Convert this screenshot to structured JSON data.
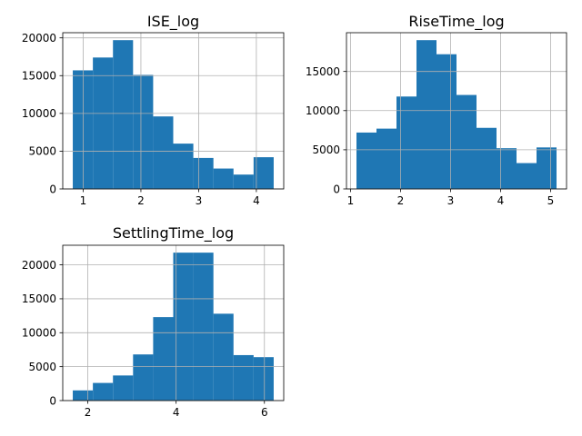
{
  "colors": {
    "bar": "#1f77b4",
    "grid": "#b0b0b0",
    "axis": "#000000",
    "background": "#ffffff"
  },
  "chart_data": [
    {
      "type": "bar",
      "title": "ISE_log",
      "grid": true,
      "bin_edges": [
        0.82,
        1.168,
        1.516,
        1.864,
        2.212,
        2.56,
        2.908,
        3.256,
        3.604,
        3.952,
        4.3
      ],
      "values": [
        15700,
        17400,
        19700,
        15100,
        9600,
        6000,
        4100,
        2700,
        1900,
        4200
      ],
      "xlim": [
        0.646,
        4.474
      ],
      "ylim": [
        0,
        20685
      ],
      "xticks": [
        1,
        2,
        3,
        4
      ],
      "xtick_labels": [
        "1",
        "2",
        "3",
        "4"
      ],
      "yticks": [
        0,
        5000,
        10000,
        15000,
        20000
      ],
      "ytick_labels": [
        "0",
        "5000",
        "10000",
        "15000",
        "20000"
      ]
    },
    {
      "type": "bar",
      "title": "RiseTime_log",
      "grid": true,
      "bin_edges": [
        1.12,
        1.52,
        1.92,
        2.32,
        2.72,
        3.12,
        3.52,
        3.92,
        4.32,
        4.72,
        5.12
      ],
      "values": [
        7200,
        7700,
        11800,
        19000,
        17200,
        12000,
        7800,
        5200,
        3300,
        5300
      ],
      "xlim": [
        0.92,
        5.32
      ],
      "ylim": [
        0,
        19950
      ],
      "xticks": [
        1,
        2,
        3,
        4,
        5
      ],
      "xtick_labels": [
        "1",
        "2",
        "3",
        "4",
        "5"
      ],
      "yticks": [
        0,
        5000,
        10000,
        15000
      ],
      "ytick_labels": [
        "0",
        "5000",
        "10000",
        "15000"
      ]
    },
    {
      "type": "bar",
      "title": "SettlingTime_log",
      "grid": true,
      "bin_edges": [
        1.66,
        2.115,
        2.57,
        3.025,
        3.48,
        3.935,
        4.39,
        4.845,
        5.3,
        5.755,
        6.21
      ],
      "values": [
        1500,
        2600,
        3700,
        6800,
        12300,
        21800,
        21800,
        12800,
        6700,
        6400
      ],
      "xlim": [
        1.4325,
        6.4375
      ],
      "ylim": [
        0,
        22890
      ],
      "xticks": [
        2,
        4,
        6
      ],
      "xtick_labels": [
        "2",
        "4",
        "6"
      ],
      "yticks": [
        0,
        5000,
        10000,
        15000,
        20000
      ],
      "ytick_labels": [
        "0",
        "5000",
        "10000",
        "15000",
        "20000"
      ]
    }
  ]
}
